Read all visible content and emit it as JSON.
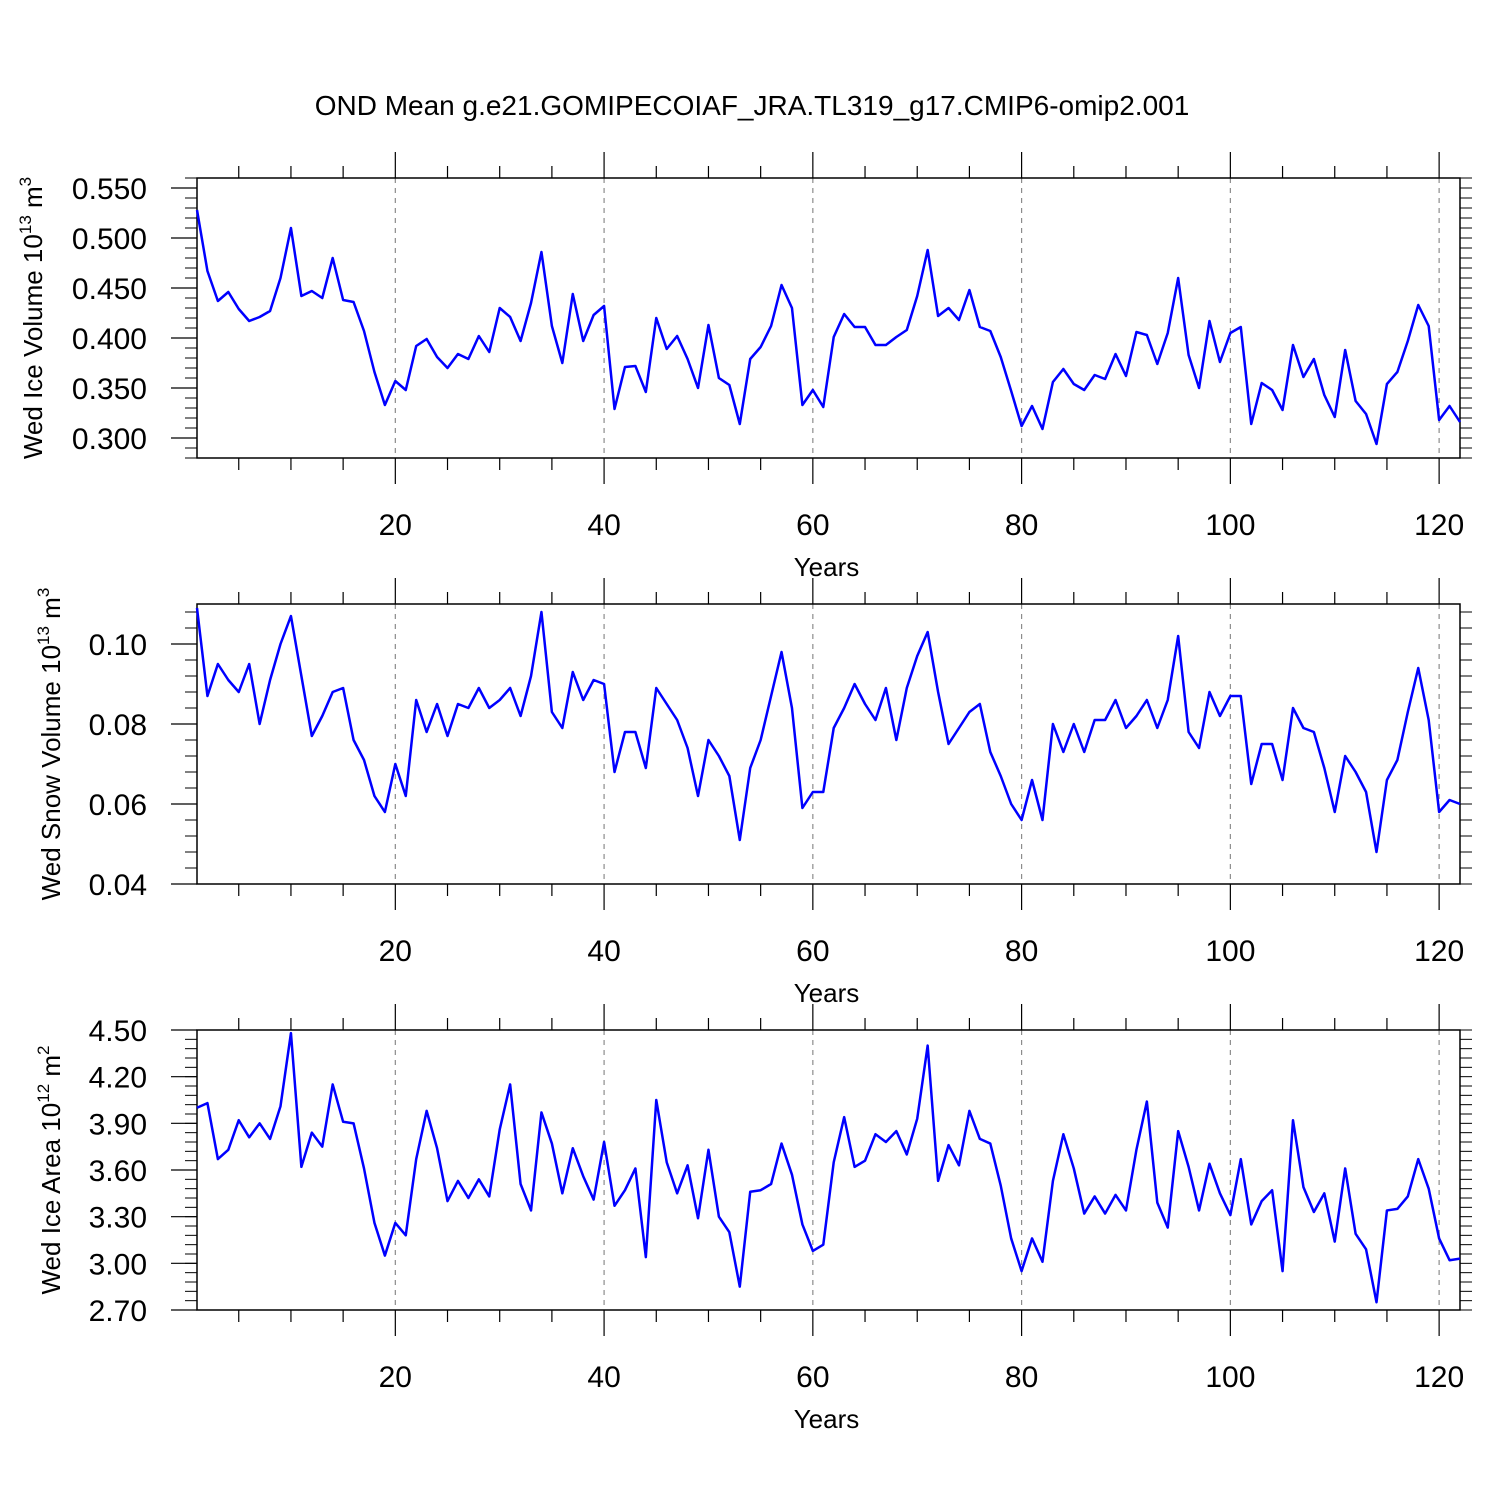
{
  "title": "OND Mean g.e21.GOMIPECOIAF_JRA.TL319_g17.CMIP6-omip2.001",
  "colors": {
    "series": "#0000ff",
    "axis": "#000000",
    "grid": "#8c8c8c"
  },
  "chart_data": [
    {
      "type": "line",
      "ylabel": {
        "main": "Wed Ice Volume 10",
        "exponent": "13",
        "unit": " m",
        "unit_exponent": "3"
      },
      "xlabel": "Years",
      "xlim": [
        1,
        122
      ],
      "ylim": [
        0.28,
        0.56
      ],
      "xticks": [
        20,
        40,
        60,
        80,
        100,
        120
      ],
      "xtick_labels": [
        "20",
        "40",
        "60",
        "80",
        "100",
        "120"
      ],
      "yticks": [
        0.3,
        0.35,
        0.4,
        0.45,
        0.5,
        0.55
      ],
      "ytick_labels": [
        "0.300",
        "0.350",
        "0.400",
        "0.450",
        "0.500",
        "0.550"
      ],
      "grid": "vertical dashed at major x ticks",
      "x_start": 1,
      "values": [
        0.528,
        0.467,
        0.437,
        0.446,
        0.429,
        0.417,
        0.421,
        0.427,
        0.46,
        0.51,
        0.442,
        0.447,
        0.44,
        0.48,
        0.438,
        0.436,
        0.407,
        0.366,
        0.333,
        0.357,
        0.348,
        0.392,
        0.399,
        0.381,
        0.37,
        0.384,
        0.379,
        0.402,
        0.386,
        0.43,
        0.421,
        0.397,
        0.435,
        0.486,
        0.412,
        0.375,
        0.444,
        0.397,
        0.423,
        0.432,
        0.329,
        0.371,
        0.372,
        0.346,
        0.42,
        0.389,
        0.402,
        0.379,
        0.35,
        0.413,
        0.36,
        0.353,
        0.314,
        0.379,
        0.391,
        0.412,
        0.453,
        0.43,
        0.333,
        0.348,
        0.331,
        0.401,
        0.424,
        0.411,
        0.411,
        0.393,
        0.393,
        0.401,
        0.408,
        0.442,
        0.488,
        0.422,
        0.43,
        0.418,
        0.448,
        0.411,
        0.407,
        0.381,
        0.347,
        0.312,
        0.332,
        0.309,
        0.356,
        0.369,
        0.354,
        0.348,
        0.363,
        0.359,
        0.384,
        0.362,
        0.406,
        0.403,
        0.374,
        0.405,
        0.46,
        0.383,
        0.35,
        0.417,
        0.376,
        0.405,
        0.411,
        0.314,
        0.355,
        0.348,
        0.328,
        0.393,
        0.361,
        0.379,
        0.343,
        0.321,
        0.388,
        0.337,
        0.324,
        0.294,
        0.354,
        0.366,
        0.397,
        0.433,
        0.412,
        0.318,
        0.332,
        0.316
      ]
    },
    {
      "type": "line",
      "ylabel": {
        "main": "Wed Snow Volume 10",
        "exponent": "13",
        "unit": " m",
        "unit_exponent": "3"
      },
      "xlabel": "Years",
      "xlim": [
        1,
        122
      ],
      "ylim": [
        0.04,
        0.11
      ],
      "xticks": [
        20,
        40,
        60,
        80,
        100,
        120
      ],
      "xtick_labels": [
        "20",
        "40",
        "60",
        "80",
        "100",
        "120"
      ],
      "yticks": [
        0.04,
        0.06,
        0.08,
        0.1
      ],
      "ytick_labels": [
        "0.04",
        "0.06",
        "0.08",
        "0.10"
      ],
      "grid": "vertical dashed at major x ticks",
      "x_start": 1,
      "values": [
        0.109,
        0.087,
        0.095,
        0.091,
        0.088,
        0.095,
        0.08,
        0.091,
        0.1,
        0.107,
        0.092,
        0.077,
        0.082,
        0.088,
        0.089,
        0.076,
        0.071,
        0.062,
        0.058,
        0.07,
        0.062,
        0.086,
        0.078,
        0.085,
        0.077,
        0.085,
        0.084,
        0.089,
        0.084,
        0.086,
        0.089,
        0.082,
        0.092,
        0.108,
        0.083,
        0.079,
        0.093,
        0.086,
        0.091,
        0.09,
        0.068,
        0.078,
        0.078,
        0.069,
        0.089,
        0.085,
        0.081,
        0.074,
        0.062,
        0.076,
        0.072,
        0.067,
        0.051,
        0.069,
        0.076,
        0.087,
        0.098,
        0.084,
        0.059,
        0.063,
        0.063,
        0.079,
        0.084,
        0.09,
        0.085,
        0.081,
        0.089,
        0.076,
        0.089,
        0.097,
        0.103,
        0.088,
        0.075,
        0.079,
        0.083,
        0.085,
        0.073,
        0.067,
        0.06,
        0.056,
        0.066,
        0.056,
        0.08,
        0.073,
        0.08,
        0.073,
        0.081,
        0.081,
        0.086,
        0.079,
        0.082,
        0.086,
        0.079,
        0.086,
        0.102,
        0.078,
        0.074,
        0.088,
        0.082,
        0.087,
        0.087,
        0.065,
        0.075,
        0.075,
        0.066,
        0.084,
        0.079,
        0.078,
        0.069,
        0.058,
        0.072,
        0.068,
        0.063,
        0.048,
        0.066,
        0.071,
        0.083,
        0.094,
        0.081,
        0.058,
        0.061,
        0.06
      ]
    },
    {
      "type": "line",
      "ylabel": {
        "main": "Wed Ice Area 10",
        "exponent": "12",
        "unit": " m",
        "unit_exponent": "2"
      },
      "xlabel": "Years",
      "xlim": [
        1,
        122
      ],
      "ylim": [
        2.7,
        4.5
      ],
      "xticks": [
        20,
        40,
        60,
        80,
        100,
        120
      ],
      "xtick_labels": [
        "20",
        "40",
        "60",
        "80",
        "100",
        "120"
      ],
      "yticks": [
        2.7,
        3.0,
        3.3,
        3.6,
        3.9,
        4.2,
        4.5
      ],
      "ytick_labels": [
        "2.70",
        "3.00",
        "3.30",
        "3.60",
        "3.90",
        "4.20",
        "4.50"
      ],
      "grid": "vertical dashed at major x ticks",
      "x_start": 1,
      "values": [
        4.0,
        4.03,
        3.67,
        3.73,
        3.92,
        3.81,
        3.9,
        3.8,
        4.01,
        4.48,
        3.62,
        3.84,
        3.75,
        4.15,
        3.91,
        3.9,
        3.61,
        3.26,
        3.05,
        3.26,
        3.18,
        3.67,
        3.98,
        3.74,
        3.4,
        3.53,
        3.42,
        3.54,
        3.43,
        3.86,
        4.15,
        3.51,
        3.34,
        3.97,
        3.77,
        3.45,
        3.74,
        3.56,
        3.41,
        3.78,
        3.37,
        3.47,
        3.61,
        3.04,
        4.05,
        3.65,
        3.45,
        3.63,
        3.29,
        3.73,
        3.3,
        3.2,
        2.85,
        3.46,
        3.47,
        3.51,
        3.77,
        3.57,
        3.25,
        3.08,
        3.12,
        3.65,
        3.94,
        3.62,
        3.66,
        3.83,
        3.78,
        3.85,
        3.7,
        3.93,
        4.4,
        3.53,
        3.76,
        3.63,
        3.98,
        3.8,
        3.77,
        3.5,
        3.16,
        2.95,
        3.16,
        3.01,
        3.53,
        3.83,
        3.61,
        3.32,
        3.43,
        3.32,
        3.44,
        3.34,
        3.73,
        4.04,
        3.39,
        3.23,
        3.85,
        3.62,
        3.34,
        3.64,
        3.45,
        3.31,
        3.67,
        3.25,
        3.4,
        3.47,
        2.95,
        3.92,
        3.49,
        3.33,
        3.45,
        3.14,
        3.61,
        3.19,
        3.09,
        2.75,
        3.34,
        3.35,
        3.43,
        3.67,
        3.48,
        3.16,
        3.02,
        3.03
      ]
    }
  ]
}
